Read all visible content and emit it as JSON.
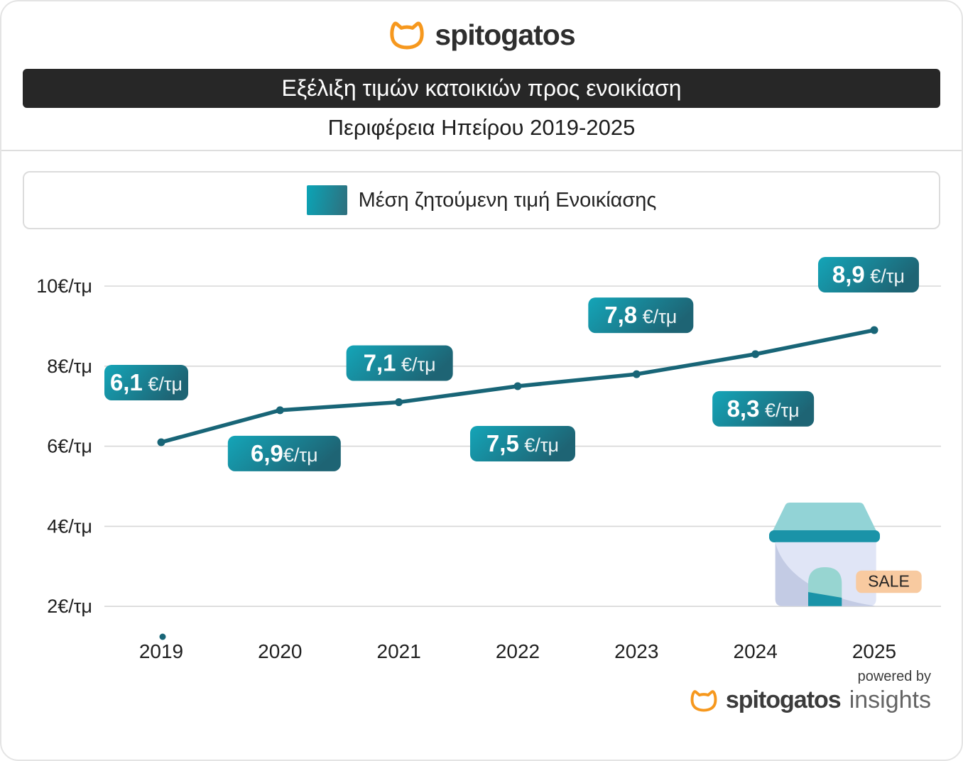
{
  "brand": {
    "name": "spitogatos",
    "cat_icon_color": "#F6981E"
  },
  "header": {
    "title": "Εξέλιξη τιμών κατοικιών προς ενοικίαση",
    "subtitle": "Περιφέρεια Ηπείρου 2019-2025"
  },
  "legend": {
    "label": "Μέση ζητούμενη τιμή Ενοικίασης",
    "swatch_gradient": [
      "#0BA4B6",
      "#2F6F7D"
    ]
  },
  "chart_data": {
    "type": "line",
    "title": "Εξέλιξη τιμών κατοικιών προς ενοικίαση",
    "subtitle": "Περιφέρεια Ηπείρου 2019-2025",
    "x": [
      2019,
      2020,
      2021,
      2022,
      2023,
      2024,
      2025
    ],
    "x_tick_labels": [
      "2019",
      "2020",
      "2021",
      "2022",
      "2023",
      "2024",
      "2025"
    ],
    "series": [
      {
        "name": "Μέση ζητούμενη τιμή Ενοικίασης",
        "values": [
          6.1,
          6.9,
          7.1,
          7.5,
          7.8,
          8.3,
          8.9
        ]
      }
    ],
    "point_labels": [
      {
        "num": "6,1",
        "unit": " €/τμ"
      },
      {
        "num": "6,9",
        "unit": "€/τμ"
      },
      {
        "num": "7,1",
        "unit": " €/τμ"
      },
      {
        "num": "7,5",
        "unit": " €/τμ"
      },
      {
        "num": "7,8",
        "unit": " €/τμ"
      },
      {
        "num": "8,3",
        "unit": " €/τμ"
      },
      {
        "num": "8,9",
        "unit": " €/τμ"
      }
    ],
    "y_ticks": [
      {
        "value": 10,
        "label": "10€/τμ"
      },
      {
        "value": 8,
        "label": "8€/τμ"
      },
      {
        "value": 6,
        "label": "6€/τμ"
      },
      {
        "value": 4,
        "label": "4€/τμ"
      },
      {
        "value": 2,
        "label": "2€/τμ"
      }
    ],
    "ylabel": "€/τμ",
    "ylim_visible": [
      2,
      10
    ],
    "grid": "horizontal",
    "legend_position": "top",
    "line_color": "#186577",
    "gridline_color": "#d7d7d7",
    "badge_gradient": [
      "#14A5B8",
      "#1E6474"
    ],
    "axis_text_color": "#1f1f1f"
  },
  "sale_sticker": {
    "label": "SALE",
    "bg_color": "#F8CAA0",
    "house_colors": {
      "roof": "#92D3D6",
      "roof_band": "#1A93A8",
      "body": "#E0E5F6",
      "body_shade": "#C3CBE4",
      "door": "#97D5D1"
    }
  },
  "footer": {
    "powered_by": "powered by",
    "brand": "spitogatos",
    "suffix": "insights"
  }
}
